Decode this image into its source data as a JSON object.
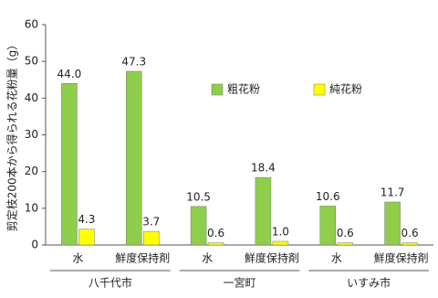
{
  "chart_data": {
    "type": "bar",
    "y_label": "剪定枝200本から得られる花粉量（g）",
    "categories": [
      "水",
      "鮮度保持剤",
      "水",
      "鮮度保持剤",
      "水",
      "鮮度保持剤"
    ],
    "groups": [
      "八千代市",
      "一宮町",
      "いすみ市"
    ],
    "series": [
      {
        "name": "粗花粉",
        "color": "#8fce4a",
        "values": [
          44.0,
          47.3,
          10.5,
          18.4,
          10.6,
          11.7
        ],
        "value_labels": [
          "44.0",
          "47.3",
          "10.5",
          "18.4",
          "10.6",
          "11.7"
        ]
      },
      {
        "name": "純花粉",
        "color": "#ffff00",
        "values": [
          4.3,
          3.7,
          0.6,
          1.0,
          0.6,
          0.6
        ],
        "value_labels": [
          "4.3",
          "3.7",
          "0.6",
          "1.0",
          "0.6",
          "0.6"
        ]
      }
    ],
    "ylim": [
      0,
      60
    ],
    "yticks": [
      0,
      10,
      20,
      30,
      40,
      50,
      60
    ]
  }
}
